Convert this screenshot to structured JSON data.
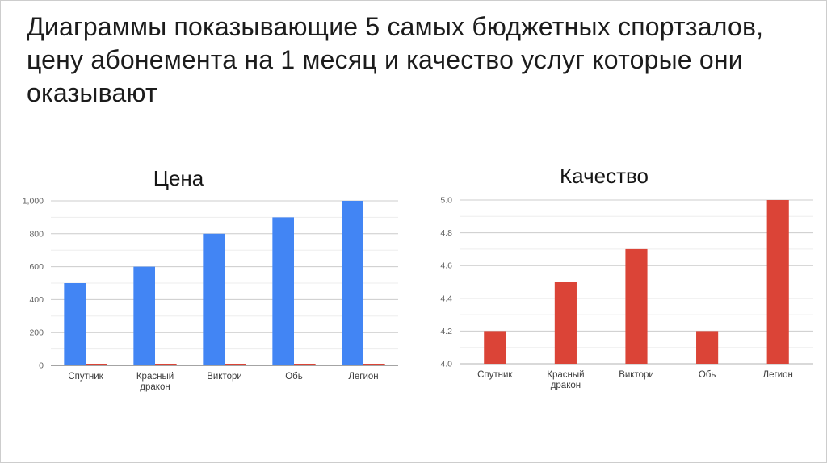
{
  "slide": {
    "heading_lines": [
      "Диаграммы показывающие 5 самых бюджетных спортзалов,",
      "цену абонемента на 1 месяц и качество услуг которые они",
      "оказывают"
    ]
  },
  "chart_data": [
    {
      "type": "bar",
      "title": "Цена",
      "categories": [
        "Спутник",
        "Красный дракон",
        "Виктори",
        "Обь",
        "Легион"
      ],
      "series": [
        {
          "name": "Цена",
          "color": "#4285f4",
          "values": [
            500,
            600,
            800,
            900,
            1000
          ]
        },
        {
          "name": "Качество",
          "color": "#db4437",
          "values": [
            4.2,
            4.5,
            4.7,
            4.2,
            5
          ]
        }
      ],
      "xlabel": "",
      "ylabel": "",
      "ylim": [
        0,
        1000
      ],
      "yticks": [
        0,
        200,
        400,
        600,
        800,
        1000
      ],
      "ytick_labels": [
        "0",
        "200",
        "400",
        "600",
        "800",
        "1,000"
      ],
      "minor_step": 100,
      "grid": true,
      "legend": "none"
    },
    {
      "type": "bar",
      "title": "Качество",
      "categories": [
        "Спутник",
        "Красный дракон",
        "Виктори",
        "Обь",
        "Легион"
      ],
      "series": [
        {
          "name": "Качество",
          "color": "#db4437",
          "values": [
            4.2,
            4.5,
            4.7,
            4.2,
            5
          ]
        }
      ],
      "xlabel": "",
      "ylabel": "",
      "ylim": [
        4.0,
        5.0
      ],
      "yticks": [
        4.0,
        4.2,
        4.4,
        4.6,
        4.8,
        5.0
      ],
      "ytick_labels": [
        "4.0",
        "4.2",
        "4.4",
        "4.6",
        "4.8",
        "5.0"
      ],
      "minor_step": 0.1,
      "grid": true,
      "legend": "none"
    }
  ],
  "colors": {
    "price_bar": "#4285f4",
    "quality_bar": "#db4437",
    "grid_major": "#cccccc",
    "grid_minor": "#ededed"
  }
}
